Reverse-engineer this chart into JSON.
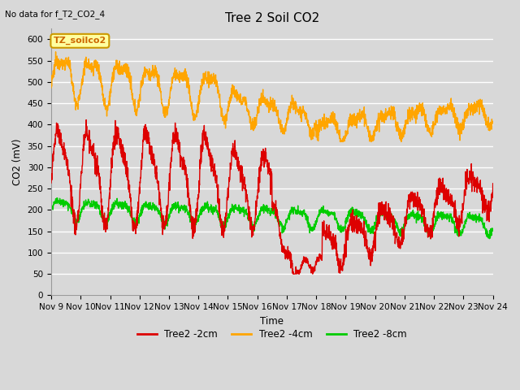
{
  "title": "Tree 2 Soil CO2",
  "subtitle": "No data for f_T2_CO2_4",
  "xlabel": "Time",
  "ylabel": "CO2 (mV)",
  "ylim": [
    0,
    625
  ],
  "yticks": [
    0,
    50,
    100,
    150,
    200,
    250,
    300,
    350,
    400,
    450,
    500,
    550,
    600
  ],
  "bg_color": "#d8d8d8",
  "series_colors": {
    "2cm": "#dd0000",
    "4cm": "#ffa500",
    "8cm": "#00cc00"
  },
  "legend_entries": [
    "Tree2 -2cm",
    "Tree2 -4cm",
    "Tree2 -8cm"
  ],
  "legend_label": "TZ_soilco2",
  "x_tick_labels": [
    "Nov 9",
    "Nov 10",
    "Nov 11",
    "Nov 12",
    "Nov 13",
    "Nov 14",
    "Nov 15",
    "Nov 16",
    "Nov 17",
    "Nov 18",
    "Nov 19",
    "Nov 20",
    "Nov 21",
    "Nov 22",
    "Nov 23",
    "Nov 24"
  ],
  "n_days": 15
}
